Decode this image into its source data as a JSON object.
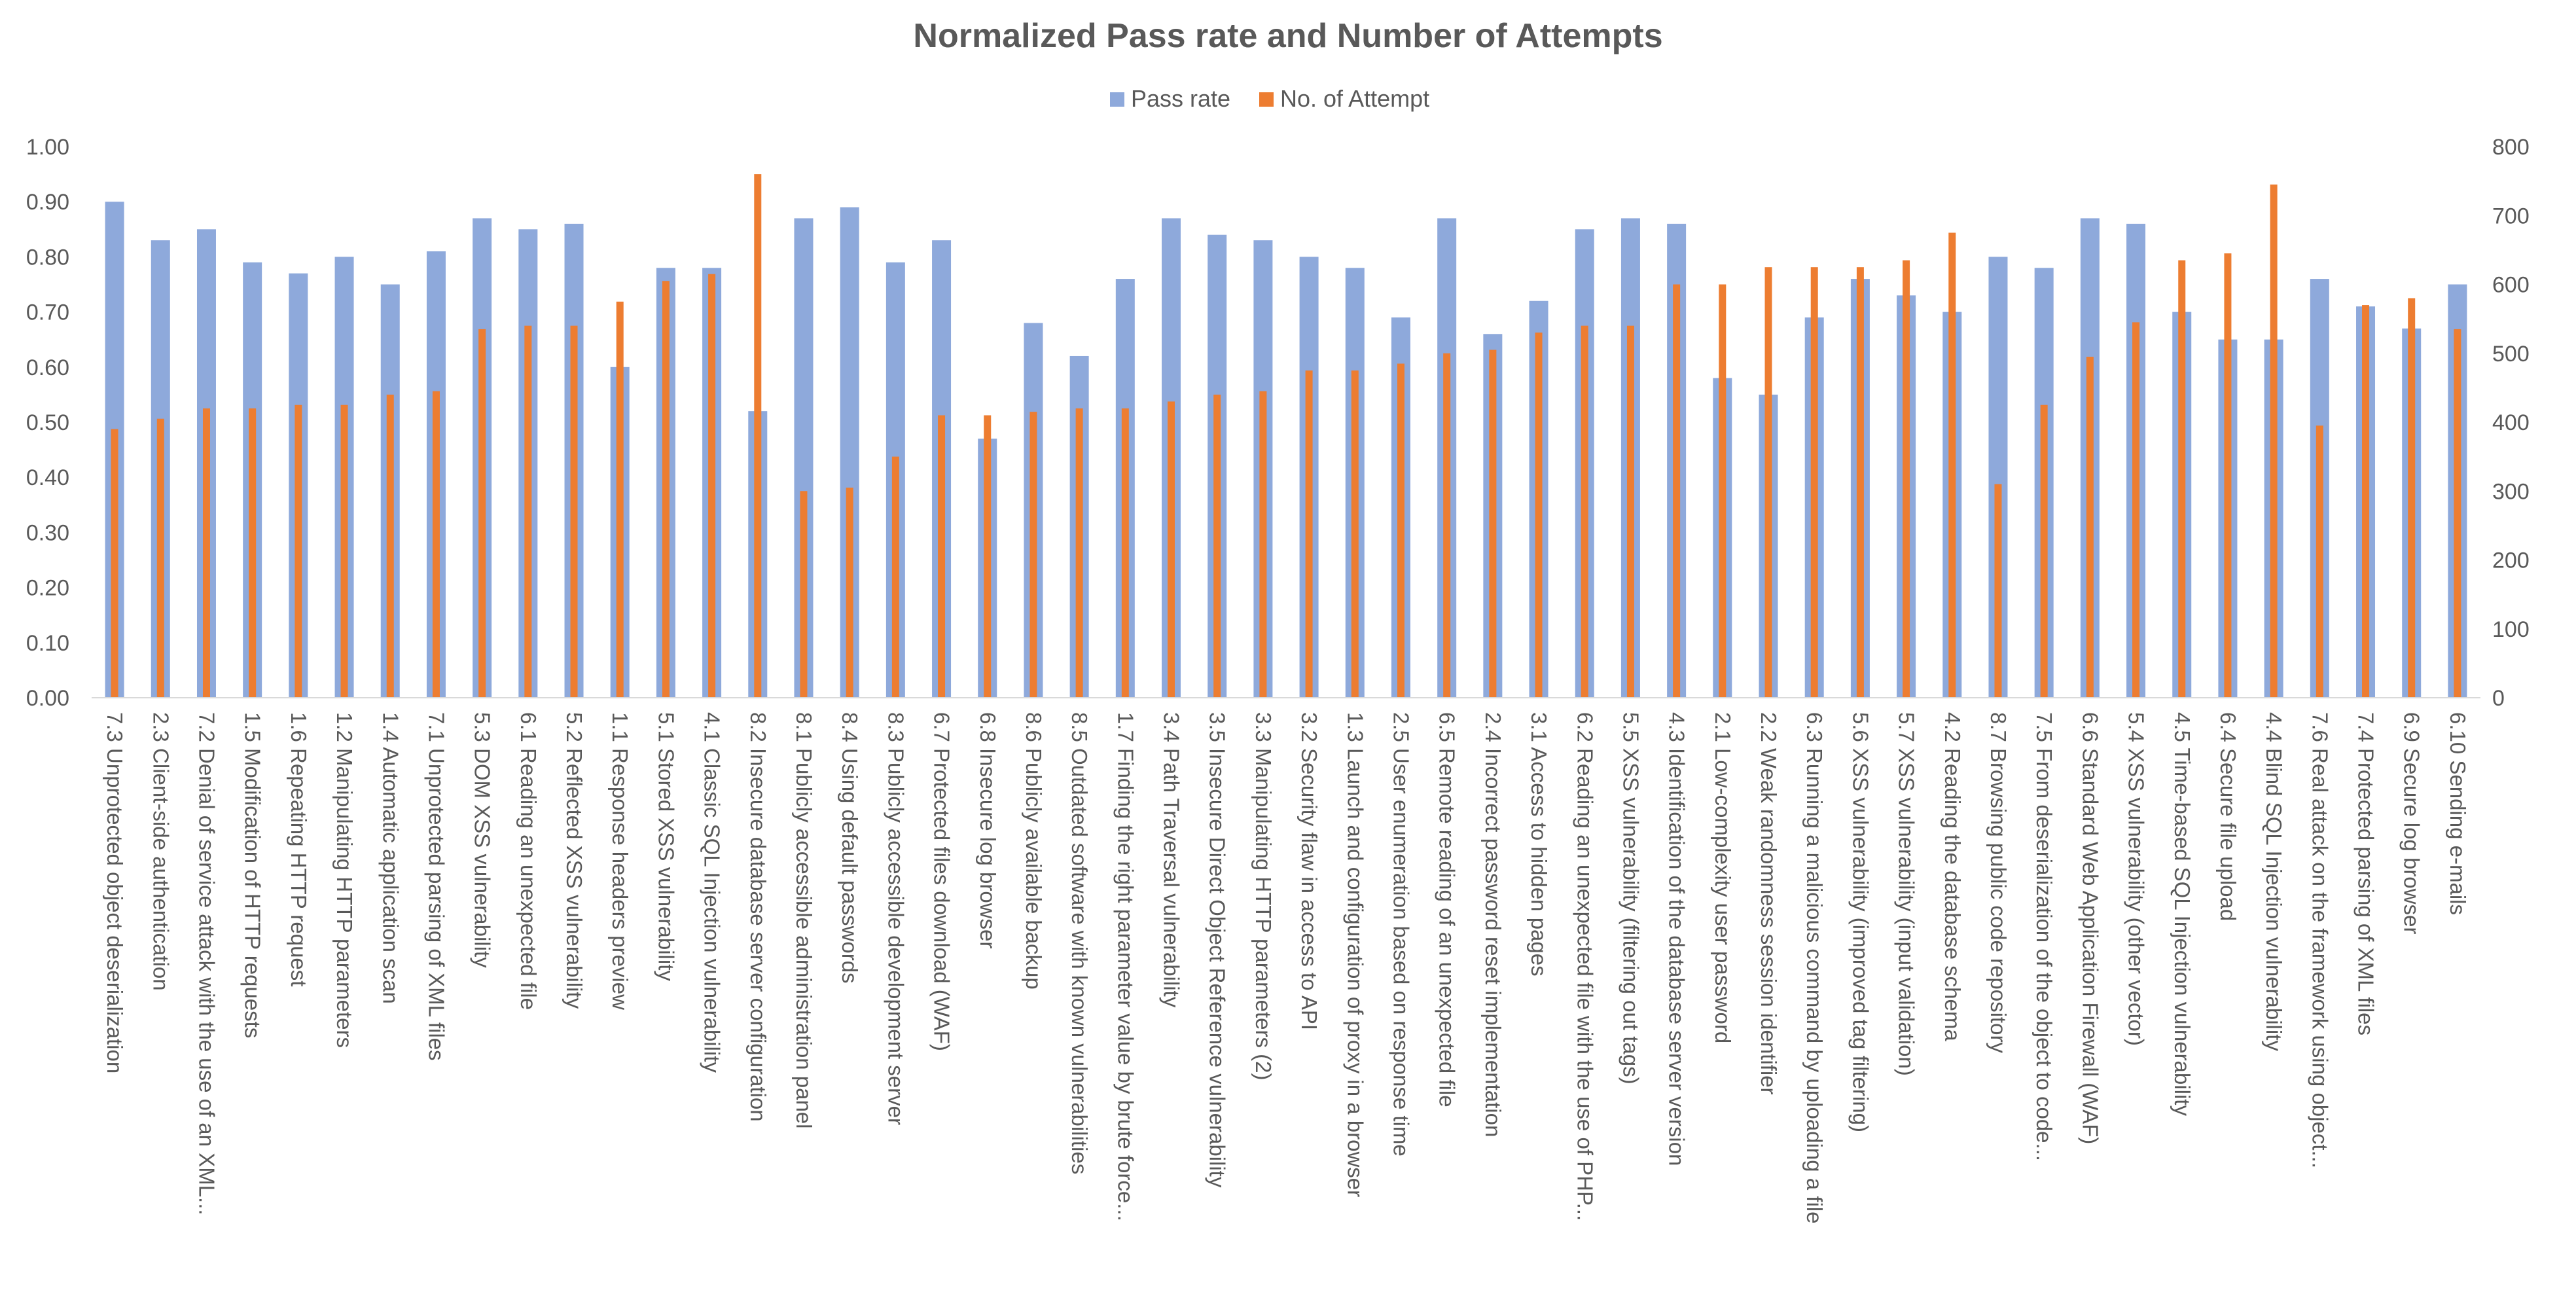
{
  "chart_data": {
    "type": "bar",
    "title": "Normalized  Pass rate and Number of Attempts",
    "legend_position": "top",
    "colors": {
      "pass_rate": "#8EA9DB",
      "attempts": "#ED7D31",
      "text": "#595959"
    },
    "y_left": {
      "min": 0,
      "max": 1,
      "ticks": [
        "0.00",
        "0.10",
        "0.20",
        "0.30",
        "0.40",
        "0.50",
        "0.60",
        "0.70",
        "0.80",
        "0.90",
        "1.00"
      ]
    },
    "y_right": {
      "min": 0,
      "max": 800,
      "ticks": [
        "0",
        "100",
        "200",
        "300",
        "400",
        "500",
        "600",
        "700",
        "800"
      ]
    },
    "categories": [
      "7.3 Unprotected object deserialization",
      "2.3 Client-side authentication",
      "7.2 Denial of service attack with the use of an XML...",
      "1.5 Modification of HTTP requests",
      "1.6 Repeating HTTP request",
      "1.2 Manipulating HTTP parameters",
      "1.4 Automatic application scan",
      "7.1 Unprotected parsing of XML files",
      "5.3 DOM XSS vulnerability",
      "6.1 Reading an unexpected file",
      "5.2 Reflected XSS vulnerability",
      "1.1 Response headers preview",
      "5.1 Stored XSS vulnerability",
      "4.1 Classic SQL Injection vulnerability",
      "8.2 Insecure database server configuration",
      "8.1 Publicly accessible administration panel",
      "8.4 Using default passwords",
      "8.3 Publicly accessible development server",
      "6.7 Protected files download (WAF)",
      "6.8 Insecure log browser",
      "8.6 Publicly available backup",
      "8.5 Outdated software with known vulnerabilities",
      "1.7 Finding the right parameter value by brute force...",
      "3.4 Path Traversal vulnerability",
      "3.5 Insecure Direct Object Reference vulnerability",
      "3.3 Manipulating HTTP parameters (2)",
      "3.2 Security flaw in access to API",
      "1.3 Launch and configuration of proxy in a browser",
      "2.5 User enumeration based on response time",
      "6.5 Remote reading of an unexpected file",
      "2.4 Incorrect password reset implementation",
      "3.1 Access to hidden pages",
      "6.2 Reading an unexpected file with the use of PHP...",
      "5.5 XSS vulnerability (filtering out tags)",
      "4.3 Identification of the database server version",
      "2.1 Low-complexity user password",
      "2.2 Weak randomness session identifier",
      "6.3 Running a malicious command by uploading a file",
      "5.6 XSS vulnerability (improved tag filtering)",
      "5.7 XSS vulnerability (input validation)",
      "4.2 Reading the database schema",
      "8.7 Browsing public code repository",
      "7.5 From deserialization of the object to code...",
      "6.6 Standard Web Application Firewall (WAF)",
      "5.4 XSS vulnerability (other vector)",
      "4.5 Time-based SQL Injection vulnerability",
      "6.4 Secure file upload",
      "4.4 Blind SQL Injection vulnerability",
      "7.6 Real attack on the framework using object...",
      "7.4 Protected parsing of XML files",
      "6.9 Secure log browser",
      "6.10 Sending e-mails"
    ],
    "series": [
      {
        "name": "Pass rate",
        "axis": "left",
        "values": [
          0.9,
          0.83,
          0.85,
          0.79,
          0.77,
          0.8,
          0.75,
          0.81,
          0.87,
          0.85,
          0.86,
          0.6,
          0.78,
          0.78,
          0.52,
          0.87,
          0.89,
          0.79,
          0.83,
          0.47,
          0.68,
          0.62,
          0.76,
          0.87,
          0.84,
          0.83,
          0.8,
          0.78,
          0.69,
          0.87,
          0.66,
          0.72,
          0.85,
          0.87,
          0.86,
          0.58,
          0.55,
          0.69,
          0.76,
          0.73,
          0.7,
          0.8,
          0.78,
          0.87,
          0.86,
          0.7,
          0.65,
          0.65,
          0.76,
          0.71,
          0.67,
          0.75
        ]
      },
      {
        "name": "No. of Attempt",
        "axis": "right",
        "values": [
          390,
          405,
          420,
          420,
          425,
          425,
          440,
          445,
          535,
          540,
          540,
          575,
          605,
          615,
          760,
          300,
          305,
          350,
          410,
          410,
          415,
          420,
          420,
          430,
          440,
          445,
          475,
          475,
          485,
          500,
          505,
          530,
          540,
          540,
          600,
          600,
          625,
          625,
          625,
          635,
          675,
          310,
          425,
          495,
          545,
          635,
          645,
          745,
          395,
          570,
          580,
          535
        ]
      }
    ]
  }
}
